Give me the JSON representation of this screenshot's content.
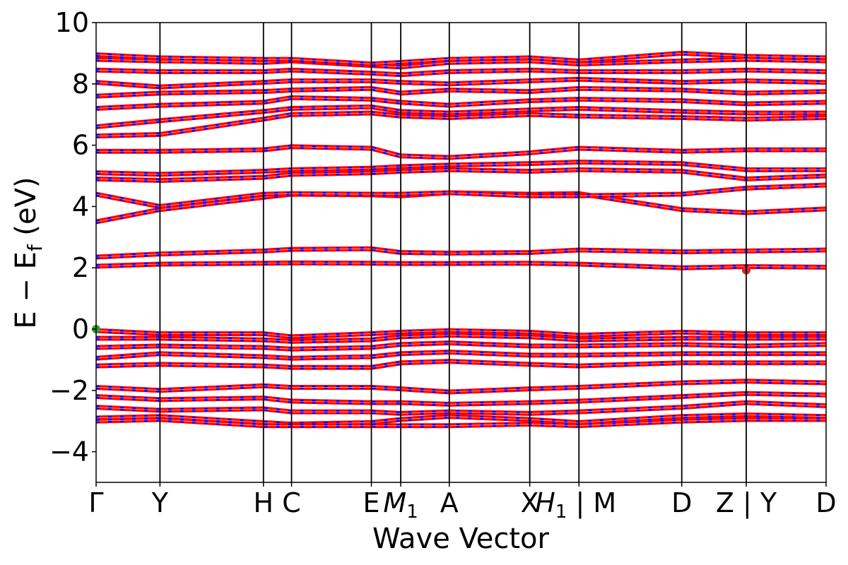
{
  "chart_data": {
    "type": "line",
    "title": "",
    "xlabel": "Wave Vector",
    "ylabel": "E − E",
    "ylabel_subscript": "f",
    "ylabel_unit": " (eV)",
    "ylim": [
      -5,
      10
    ],
    "yticks": [
      -4,
      -2,
      0,
      2,
      4,
      6,
      8,
      10
    ],
    "ytick_labels": [
      "−4",
      "−2",
      "0",
      "2",
      "4",
      "6",
      "8",
      "10"
    ],
    "xlim": [
      0,
      11.43
    ],
    "kpoints": [
      {
        "x": 0.0,
        "label": "Γ"
      },
      {
        "x": 1.0,
        "label": "Y"
      },
      {
        "x": 2.62,
        "label": "H"
      },
      {
        "x": 3.06,
        "label": "C"
      },
      {
        "x": 4.31,
        "label": "E"
      },
      {
        "x": 4.77,
        "label": "M",
        "sub": "1"
      },
      {
        "x": 5.53,
        "label": "A"
      },
      {
        "x": 6.79,
        "label": "X"
      },
      {
        "x": 7.56,
        "label": "H",
        "sub": "1",
        "suffix": " | M"
      },
      {
        "x": 9.17,
        "label": "D"
      },
      {
        "x": 10.18,
        "label": "Z | Y"
      },
      {
        "x": 11.43,
        "label": "D"
      }
    ],
    "band_colors": {
      "primary": "#ff0000",
      "secondary": "#0000ff"
    },
    "grid": false,
    "legend": "none",
    "series": [
      {
        "y": [
          2.05,
          2.12,
          2.15,
          2.16,
          2.15,
          2.14,
          2.14,
          2.15,
          2.12,
          2.0,
          2.04,
          2.02,
          1.98
        ]
      },
      {
        "y": [
          2.35,
          2.45,
          2.55,
          2.6,
          2.62,
          2.5,
          2.48,
          2.5,
          2.58,
          2.52,
          2.55,
          2.58,
          2.55
        ]
      },
      {
        "y": [
          3.5,
          3.9,
          4.3,
          4.4,
          4.38,
          4.35,
          4.45,
          4.4,
          4.42,
          3.9,
          3.8,
          3.92,
          3.85
        ]
      },
      {
        "y": [
          4.4,
          4.0,
          4.4,
          4.42,
          4.4,
          4.4,
          4.45,
          4.35,
          4.35,
          4.4,
          4.6,
          4.7,
          4.7
        ]
      },
      {
        "y": [
          4.9,
          4.85,
          4.95,
          5.05,
          5.1,
          5.15,
          5.2,
          5.15,
          5.2,
          5.15,
          4.9,
          5.0,
          4.95
        ]
      },
      {
        "y": [
          5.1,
          5.05,
          5.15,
          5.2,
          5.25,
          5.3,
          5.35,
          5.4,
          5.45,
          5.4,
          5.2,
          5.2,
          5.15
        ]
      },
      {
        "y": [
          5.8,
          5.8,
          5.85,
          5.95,
          5.9,
          5.65,
          5.6,
          5.75,
          5.9,
          5.8,
          5.85,
          5.85,
          5.85
        ]
      },
      {
        "y": [
          6.3,
          6.35,
          6.85,
          7.0,
          7.05,
          6.95,
          6.9,
          7.0,
          6.95,
          6.9,
          6.85,
          6.9,
          6.95
        ]
      },
      {
        "y": [
          6.6,
          6.8,
          7.1,
          7.2,
          7.25,
          7.1,
          7.05,
          7.15,
          7.2,
          7.1,
          7.05,
          7.05,
          7.1
        ]
      },
      {
        "y": [
          7.2,
          7.3,
          7.4,
          7.55,
          7.5,
          7.4,
          7.3,
          7.45,
          7.5,
          7.45,
          7.35,
          7.4,
          7.4
        ]
      },
      {
        "y": [
          7.6,
          7.7,
          7.75,
          7.8,
          7.85,
          7.7,
          7.8,
          7.75,
          7.85,
          7.8,
          7.7,
          7.75,
          7.8
        ]
      },
      {
        "y": [
          8.05,
          7.9,
          8.05,
          8.1,
          8.1,
          8.05,
          8.0,
          8.1,
          8.15,
          8.05,
          8.1,
          8.05,
          8.1
        ]
      },
      {
        "y": [
          8.45,
          8.4,
          8.4,
          8.45,
          8.35,
          8.3,
          8.4,
          8.45,
          8.4,
          8.4,
          8.45,
          8.4,
          8.45
        ]
      },
      {
        "y": [
          8.8,
          8.75,
          8.7,
          8.75,
          8.6,
          8.55,
          8.7,
          8.75,
          8.65,
          8.75,
          8.8,
          8.75,
          8.8
        ]
      },
      {
        "y": [
          8.95,
          8.85,
          8.8,
          8.8,
          8.65,
          8.7,
          8.8,
          8.85,
          8.75,
          9.0,
          8.9,
          8.85,
          9.0
        ]
      },
      {
        "y": [
          -0.05,
          -0.15,
          -0.15,
          -0.25,
          -0.15,
          -0.1,
          -0.05,
          -0.1,
          -0.2,
          -0.1,
          -0.15,
          -0.15,
          -0.15
        ]
      },
      {
        "y": [
          -0.3,
          -0.3,
          -0.35,
          -0.4,
          -0.35,
          -0.25,
          -0.2,
          -0.25,
          -0.35,
          -0.3,
          -0.3,
          -0.3,
          -0.3
        ]
      },
      {
        "y": [
          -0.6,
          -0.55,
          -0.6,
          -0.65,
          -0.6,
          -0.5,
          -0.45,
          -0.55,
          -0.55,
          -0.5,
          -0.55,
          -0.5,
          -0.55
        ]
      },
      {
        "y": [
          -0.95,
          -0.8,
          -0.9,
          -0.95,
          -0.9,
          -0.8,
          -0.75,
          -0.85,
          -0.85,
          -0.8,
          -0.8,
          -0.8,
          -0.8
        ]
      },
      {
        "y": [
          -1.2,
          -1.15,
          -1.2,
          -1.25,
          -1.25,
          -1.1,
          -1.05,
          -1.15,
          -1.2,
          -1.1,
          -1.1,
          -1.1,
          -1.1
        ]
      },
      {
        "y": [
          -1.9,
          -2.0,
          -1.85,
          -1.9,
          -1.9,
          -1.95,
          -2.05,
          -1.95,
          -1.9,
          -1.75,
          -1.7,
          -1.75,
          -1.7
        ]
      },
      {
        "y": [
          -2.2,
          -2.3,
          -2.25,
          -2.35,
          -2.4,
          -2.4,
          -2.45,
          -2.4,
          -2.35,
          -2.2,
          -2.1,
          -2.15,
          -2.1
        ]
      },
      {
        "y": [
          -2.55,
          -2.65,
          -2.6,
          -2.7,
          -2.7,
          -2.75,
          -2.7,
          -2.75,
          -2.7,
          -2.55,
          -2.4,
          -2.5,
          -2.45
        ]
      },
      {
        "y": [
          -2.9,
          -2.85,
          -3.05,
          -3.1,
          -3.05,
          -2.95,
          -2.85,
          -2.95,
          -3.05,
          -2.85,
          -2.8,
          -2.85,
          -2.85
        ]
      },
      {
        "y": [
          -3.0,
          -2.95,
          -3.15,
          -3.15,
          -3.15,
          -3.15,
          -3.15,
          -3.1,
          -3.15,
          -3.0,
          -2.95,
          -2.95,
          -2.95
        ]
      }
    ],
    "markers": [
      {
        "x": 0.0,
        "y": 0.0,
        "color": "#2ca02c"
      },
      {
        "x": 10.18,
        "y": 1.92,
        "color": "#d62728"
      }
    ]
  }
}
